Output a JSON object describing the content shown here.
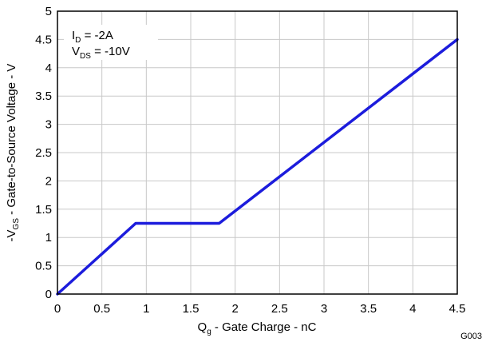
{
  "chart_data": {
    "type": "line",
    "figure_id": "G003",
    "xlabel": {
      "main": "Q",
      "sub": "g",
      "rest": " - Gate Charge - nC"
    },
    "ylabel": {
      "pre": "-V",
      "sub": "GS",
      "rest": " - Gate-to-Source Voltage - V"
    },
    "xlim": [
      0,
      4.5
    ],
    "ylim": [
      0,
      5
    ],
    "xticks": [
      0,
      0.5,
      1,
      1.5,
      2,
      2.5,
      3,
      3.5,
      4,
      4.5
    ],
    "xtick_labels": [
      "0",
      "0.5",
      "1",
      "1.5",
      "2",
      "2.5",
      "3",
      "3.5",
      "4",
      "4.5"
    ],
    "yticks": [
      0,
      0.5,
      1,
      1.5,
      2,
      2.5,
      3,
      3.5,
      4,
      4.5,
      5
    ],
    "ytick_labels": [
      "0",
      "0.5",
      "1",
      "1.5",
      "2",
      "2.5",
      "3",
      "3.5",
      "4",
      "4.5",
      "5"
    ],
    "grid": true,
    "annotations": [
      {
        "main": "I",
        "sub": "D",
        "rest": " = -2A"
      },
      {
        "main": "V",
        "sub": "DS",
        "rest": " = -10V"
      }
    ],
    "series": [
      {
        "color": "#1c1cdc",
        "x": [
          0,
          0.88,
          1.82,
          4.5
        ],
        "y": [
          0,
          1.25,
          1.25,
          4.5
        ]
      }
    ]
  }
}
